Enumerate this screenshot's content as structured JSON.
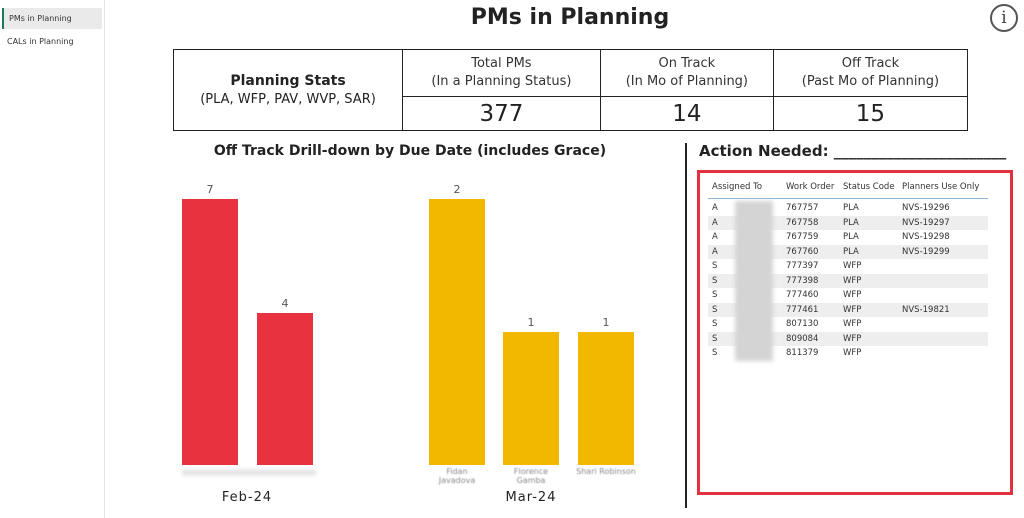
{
  "sidebar": {
    "items": [
      {
        "label": "PMs in Planning",
        "active": true
      },
      {
        "label": "CALs in Planning"
      }
    ]
  },
  "title": "PMs in Planning",
  "info_icon": "info-icon",
  "stats": {
    "label": "Planning Stats",
    "sub": "(PLA, WFP, PAV, WVP, SAR)",
    "cols": [
      {
        "h1": "Total PMs",
        "h2": "(In a Planning Status)",
        "value": "377"
      },
      {
        "h1": "On Track",
        "h2": "(In Mo of Planning)",
        "value": "14"
      },
      {
        "h1": "Off Track",
        "h2": "(Past Mo of Planning)",
        "value": "15"
      }
    ]
  },
  "chart_data": {
    "type": "bar",
    "title": "Off Track Drill-down by Due Date (includes Grace)",
    "groups": [
      {
        "name": "Feb-24",
        "color": "#e8323f",
        "categories": [
          "",
          ""
        ],
        "values": [
          7,
          4
        ]
      },
      {
        "name": "Mar-24",
        "color": "#f2b800",
        "categories": [
          "Fidan Javadova",
          "Florence Gamba",
          "Shari Robinson"
        ],
        "values": [
          2,
          1,
          1
        ]
      }
    ]
  },
  "action": {
    "title": "Action Needed: _______________________",
    "headers": [
      "Assigned To",
      "Work Order",
      "Status Code",
      "Planners Use Only"
    ],
    "rows": [
      [
        "A",
        "767757",
        "PLA",
        "NVS-19296"
      ],
      [
        "A",
        "767758",
        "PLA",
        "NVS-19297"
      ],
      [
        "A",
        "767759",
        "PLA",
        "NVS-19298"
      ],
      [
        "A",
        "767760",
        "PLA",
        "NVS-19299"
      ],
      [
        "S",
        "777397",
        "WFP",
        ""
      ],
      [
        "S",
        "777398",
        "WFP",
        ""
      ],
      [
        "S",
        "777460",
        "WFP",
        ""
      ],
      [
        "S",
        "777461",
        "WFP",
        "NVS-19821"
      ],
      [
        "S",
        "807130",
        "WFP",
        ""
      ],
      [
        "S",
        "809084",
        "WFP",
        ""
      ],
      [
        "S",
        "811379",
        "WFP",
        ""
      ]
    ]
  }
}
